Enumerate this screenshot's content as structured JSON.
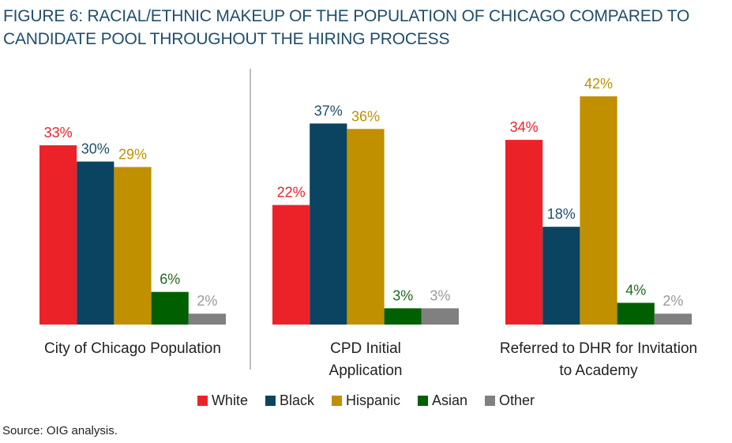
{
  "title_lines": [
    "FIGURE 6: RACIAL/ETHNIC MAKEUP OF THE POPULATION OF CHICAGO COMPARED TO",
    "CANDIDATE POOL THROUGHOUT THE HIRING PROCESS"
  ],
  "source": "Source: OIG analysis.",
  "chart_data": {
    "type": "bar",
    "title": "FIGURE 6: RACIAL/ETHNIC MAKEUP OF THE POPULATION OF CHICAGO COMPARED TO CANDIDATE POOL THROUGHOUT THE HIRING PROCESS",
    "xlabel": "",
    "ylabel": "",
    "ylim": [
      0,
      42
    ],
    "grid": false,
    "legend_position": "bottom",
    "value_format": "percent",
    "categories": [
      [
        "City of Chicago Population"
      ],
      [
        "CPD Initial",
        "Application"
      ],
      [
        "Referred to DHR for Invitation",
        "to Academy"
      ]
    ],
    "series": [
      {
        "name": "White",
        "color": "#ec2229",
        "values": [
          33,
          22,
          34
        ]
      },
      {
        "name": "Black",
        "color": "#0b4461",
        "values": [
          30,
          37,
          18
        ]
      },
      {
        "name": "Hispanic",
        "color": "#c09000",
        "values": [
          29,
          36,
          42
        ]
      },
      {
        "name": "Asian",
        "color": "#005f00",
        "values": [
          6,
          3,
          4
        ]
      },
      {
        "name": "Other",
        "color": "#808080",
        "values": [
          2,
          3,
          2
        ]
      }
    ],
    "label_colors": {
      "White": "#ec2229",
      "Black": "#1f4e6b",
      "Hispanic": "#c09000",
      "Asian": "#1e6b1e",
      "Other": "#9a9a9a"
    }
  }
}
